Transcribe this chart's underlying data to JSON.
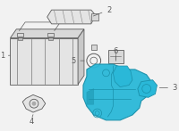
{
  "bg_color": "#f2f2f2",
  "line_color": "#5a5a5a",
  "highlight_color": "#2ab8d8",
  "highlight_edge": "#1a90aa",
  "gray_face": "#d8d8d8",
  "gray_face2": "#e4e4e4",
  "white_face": "#f0f0f0",
  "figsize": [
    2.0,
    1.47
  ],
  "dpi": 100
}
